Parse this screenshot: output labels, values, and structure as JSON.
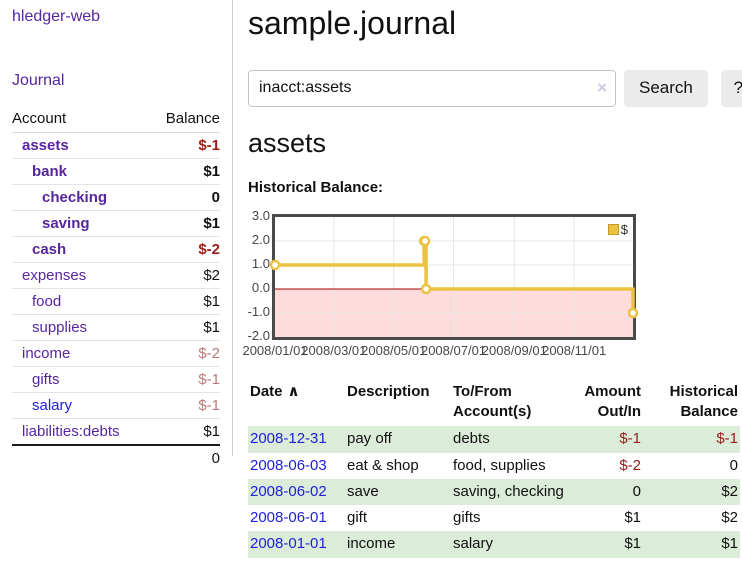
{
  "app": {
    "brand": "hledger-web",
    "nav_journal": "Journal"
  },
  "sidebar": {
    "table_headers": {
      "account": "Account",
      "balance": "Balance"
    },
    "accounts": [
      {
        "name": "assets",
        "depth": 1,
        "bold": true,
        "link": "purple",
        "balance": "$-1",
        "balance_style": "neg-strong"
      },
      {
        "name": "bank",
        "depth": 2,
        "bold": true,
        "link": "purple",
        "balance": "$1",
        "balance_style": "pos"
      },
      {
        "name": "checking",
        "depth": 3,
        "bold": true,
        "link": "purple",
        "balance": "0",
        "balance_style": "pos"
      },
      {
        "name": "saving",
        "depth": 3,
        "bold": true,
        "link": "purple",
        "balance": "$1",
        "balance_style": "pos"
      },
      {
        "name": "cash",
        "depth": 2,
        "bold": true,
        "link": "purple",
        "balance": "$-2",
        "balance_style": "neg-strong"
      },
      {
        "name": "expenses",
        "depth": 1,
        "bold": false,
        "link": "purple",
        "balance": "$2",
        "balance_style": "pos"
      },
      {
        "name": "food",
        "depth": 2,
        "bold": false,
        "link": "purple",
        "balance": "$1",
        "balance_style": "pos"
      },
      {
        "name": "supplies",
        "depth": 2,
        "bold": false,
        "link": "purple",
        "balance": "$1",
        "balance_style": "pos"
      },
      {
        "name": "income",
        "depth": 1,
        "bold": false,
        "link": "purple",
        "balance": "$-2",
        "balance_style": "neg-faded"
      },
      {
        "name": "gifts",
        "depth": 2,
        "bold": false,
        "link": "purple",
        "balance": "$-1",
        "balance_style": "neg-faded"
      },
      {
        "name": "salary",
        "depth": 2,
        "bold": false,
        "link": "blue",
        "balance": "$-1",
        "balance_style": "neg-faded"
      },
      {
        "name": "liabilities:debts",
        "depth": 1,
        "bold": false,
        "link": "purple",
        "balance": "$1",
        "balance_style": "pos"
      }
    ],
    "total": "0"
  },
  "header": {
    "title": "sample.journal"
  },
  "search": {
    "value": "inacct:assets",
    "clear_icon": "×",
    "button_label": "Search",
    "help_label": "?"
  },
  "account_page": {
    "heading": "assets",
    "chart_label": "Historical Balance:"
  },
  "chart_data": {
    "type": "line",
    "title": "Historical Balance",
    "step": true,
    "series": [
      {
        "name": "$",
        "color": "#EDC240",
        "points": [
          [
            "2008-01-01",
            1
          ],
          [
            "2008-06-01",
            2
          ],
          [
            "2008-06-02",
            2
          ],
          [
            "2008-06-03",
            0
          ],
          [
            "2008-12-31",
            -1
          ]
        ]
      }
    ],
    "xlim": [
      "2008-01-01",
      "2008-12-31"
    ],
    "ylim": [
      -2,
      3
    ],
    "x_ticks": [
      "2008/01/01",
      "2008/03/01",
      "2008/05/01",
      "2008/07/01",
      "2008/09/01",
      "2008/11/01"
    ],
    "y_ticks": [
      "3.0",
      "2.0",
      "1.0",
      "0.0",
      "-1.0",
      "-2.0"
    ],
    "legend": {
      "label": "$",
      "position": "top-right"
    },
    "grid": true,
    "grid_color": "#e7e7e7",
    "negative_region_color": "#ffdcdc",
    "zero_line_color": "#a40000"
  },
  "register": {
    "headers": {
      "date": "Date",
      "description": "Description",
      "accounts": "To/From Account(s)",
      "amount": "Amount Out/In",
      "balance": "Historical Balance"
    },
    "sort_indicator": "∧",
    "rows": [
      {
        "date": "2008-12-31",
        "description": "pay off",
        "accounts": "debts",
        "amount": "$-1",
        "amount_neg": true,
        "balance": "$-1",
        "balance_neg": true,
        "shaded": true
      },
      {
        "date": "2008-06-03",
        "description": "eat & shop",
        "accounts": "food, supplies",
        "amount": "$-2",
        "amount_neg": true,
        "balance": "0",
        "balance_neg": false,
        "shaded": false
      },
      {
        "date": "2008-06-02",
        "description": "save",
        "accounts": "saving, checking",
        "amount": "0",
        "amount_neg": false,
        "balance": "$2",
        "balance_neg": false,
        "shaded": true
      },
      {
        "date": "2008-06-01",
        "description": "gift",
        "accounts": "gifts",
        "amount": "$1",
        "amount_neg": false,
        "balance": "$2",
        "balance_neg": false,
        "shaded": false
      },
      {
        "date": "2008-01-01",
        "description": "income",
        "accounts": "salary",
        "amount": "$1",
        "amount_neg": false,
        "balance": "$1",
        "balance_neg": false,
        "shaded": true
      }
    ]
  },
  "colors": {
    "link_purple": "#57269c",
    "link_blue": "#2020dd",
    "negative_strong": "#9c1b1b",
    "negative_faded": "#b97a7a",
    "row_shade_green": "#dbecd8",
    "button_gray": "#ebebeb",
    "chart_line_gold": "#EDC240"
  }
}
